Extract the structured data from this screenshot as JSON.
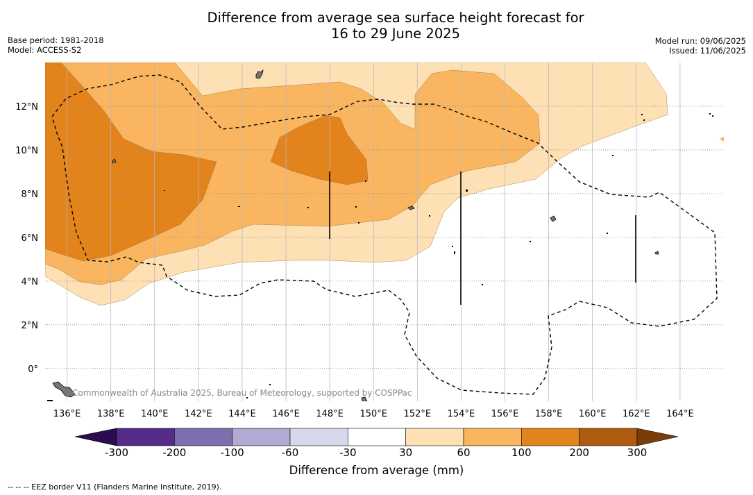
{
  "header": {
    "title_line1": "Difference from average sea surface height forecast for",
    "title_line2": "16 to 29 June 2025",
    "base_period": "Base period: 1981-2018",
    "model": "Model: ACCESS-S2",
    "model_run": "Model run: 09/06/2025",
    "issued": "Issued: 11/06/2025"
  },
  "map": {
    "lon_range": [
      135,
      166
    ],
    "lat_range": [
      -1.5,
      14
    ],
    "lon_ticks": [
      136,
      138,
      140,
      142,
      144,
      146,
      148,
      150,
      152,
      154,
      156,
      158,
      160,
      162,
      164
    ],
    "lon_tick_labels": [
      "136°E",
      "138°E",
      "140°E",
      "142°E",
      "144°E",
      "146°E",
      "148°E",
      "150°E",
      "152°E",
      "154°E",
      "156°E",
      "158°E",
      "160°E",
      "162°E",
      "164°E"
    ],
    "lat_ticks": [
      12,
      10,
      8,
      6,
      4,
      2,
      0
    ],
    "lat_tick_labels": [
      "12°N",
      "10°N",
      "8°N",
      "6°N",
      "4°N",
      "2°N",
      "0°"
    ],
    "credit": "Commonwealth of Australia 2025, Bureau of Meteorology, supported by COSPPac",
    "legend_note": "--  --  -- EEZ border V11 (Flanders Marine Institute, 2019)."
  },
  "colorbar": {
    "title": "Difference from average (mm)",
    "labels": [
      "-300",
      "-200",
      "-100",
      "-60",
      "-30",
      "30",
      "60",
      "100",
      "200",
      "300"
    ],
    "colors": [
      "#552c8a",
      "#7d6fad",
      "#b2aad3",
      "#d8d8ec",
      "#ffffff",
      "#fee0b5",
      "#f9b55f",
      "#e2831b",
      "#b05c10"
    ],
    "under_color": "#2b0c4e",
    "over_color": "#7a3d08"
  },
  "colors": {
    "level_30_60": "#fee0b5",
    "level_60_100": "#f9b55f",
    "level_100_200": "#e2831b"
  }
}
